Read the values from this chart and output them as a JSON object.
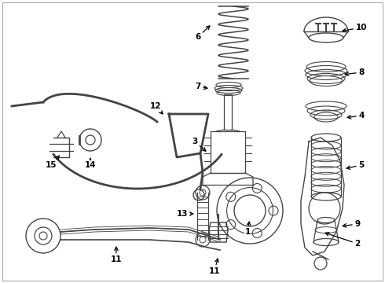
{
  "background_color": "#ffffff",
  "line_color": "#444444",
  "label_color": "#000000",
  "fig_width": 4.9,
  "fig_height": 3.6,
  "dpi": 100
}
